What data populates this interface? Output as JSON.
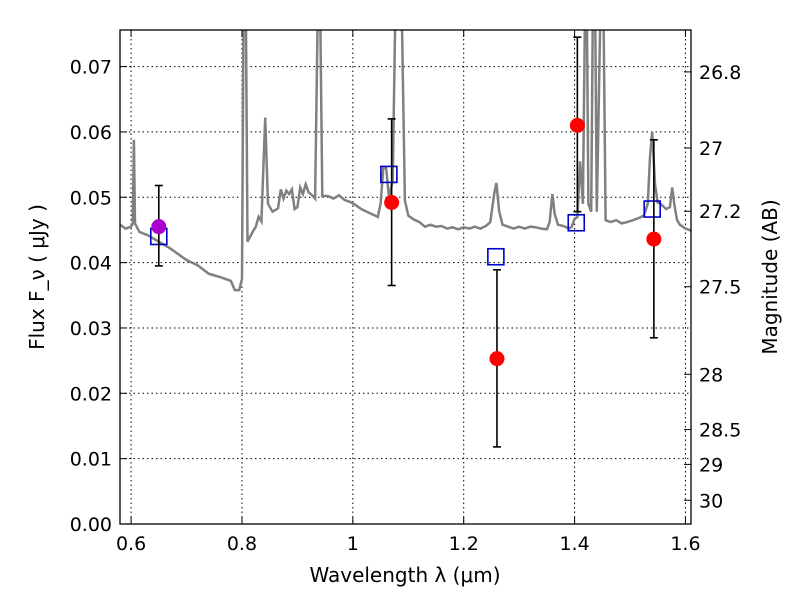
{
  "chart_data": {
    "type": "scatter",
    "xlabel": "Wavelength  λ (μm)",
    "ylabel": "Flux  F_ν  ( μJy )",
    "y2label": "Magnitude (AB)",
    "xlim": [
      0.58,
      1.61
    ],
    "ylim": [
      0.0,
      0.0756
    ],
    "grid": true,
    "x_ticks": [
      {
        "value": 0.6,
        "label": "0.6"
      },
      {
        "value": 0.8,
        "label": "0.8"
      },
      {
        "value": 1.0,
        "label": "1"
      },
      {
        "value": 1.2,
        "label": "1.2"
      },
      {
        "value": 1.4,
        "label": "1.4"
      },
      {
        "value": 1.6,
        "label": "1.6"
      }
    ],
    "y_ticks": [
      {
        "value": 0.0,
        "label": "0.00"
      },
      {
        "value": 0.01,
        "label": "0.01"
      },
      {
        "value": 0.02,
        "label": "0.02"
      },
      {
        "value": 0.03,
        "label": "0.03"
      },
      {
        "value": 0.04,
        "label": "0.04"
      },
      {
        "value": 0.05,
        "label": "0.05"
      },
      {
        "value": 0.06,
        "label": "0.06"
      },
      {
        "value": 0.07,
        "label": "0.07"
      }
    ],
    "y2_ticks": [
      {
        "value": 26.8,
        "label": "26.8"
      },
      {
        "value": 27.0,
        "label": "27"
      },
      {
        "value": 27.2,
        "label": "27.2"
      },
      {
        "value": 27.5,
        "label": "27.5"
      },
      {
        "value": 28.0,
        "label": "28"
      },
      {
        "value": 28.5,
        "label": "28.5"
      },
      {
        "value": 29.0,
        "label": "29"
      },
      {
        "value": 30.0,
        "label": "30"
      }
    ],
    "observed": [
      {
        "x": 0.65,
        "y": 0.0455,
        "err_low": 0.0395,
        "err_high": 0.0518,
        "color": "#aa00cc"
      },
      {
        "x": 1.07,
        "y": 0.0492,
        "err_low": 0.0365,
        "err_high": 0.062,
        "color": "#ff0000"
      },
      {
        "x": 1.26,
        "y": 0.0253,
        "err_low": 0.0118,
        "err_high": 0.0389,
        "color": "#ff0000"
      },
      {
        "x": 1.405,
        "y": 0.061,
        "err_low": 0.0478,
        "err_high": 0.0745,
        "color": "#ff0000"
      },
      {
        "x": 1.543,
        "y": 0.0436,
        "err_low": 0.0285,
        "err_high": 0.0588,
        "color": "#ff0000"
      }
    ],
    "model_bands": [
      {
        "x": 0.65,
        "y": 0.044
      },
      {
        "x": 1.065,
        "y": 0.0535
      },
      {
        "x": 1.258,
        "y": 0.0409
      },
      {
        "x": 1.403,
        "y": 0.0461
      },
      {
        "x": 1.54,
        "y": 0.0482
      }
    ],
    "model_spectrum": [
      [
        0.58,
        0.0458
      ],
      [
        0.59,
        0.0452
      ],
      [
        0.6,
        0.0455
      ],
      [
        0.603,
        0.046
      ],
      [
        0.605,
        0.0588
      ],
      [
        0.607,
        0.046
      ],
      [
        0.615,
        0.0447
      ],
      [
        0.63,
        0.0442
      ],
      [
        0.65,
        0.0432
      ],
      [
        0.67,
        0.0422
      ],
      [
        0.69,
        0.041
      ],
      [
        0.7,
        0.0404
      ],
      [
        0.72,
        0.0396
      ],
      [
        0.74,
        0.0383
      ],
      [
        0.76,
        0.0378
      ],
      [
        0.78,
        0.0372
      ],
      [
        0.787,
        0.0358
      ],
      [
        0.795,
        0.0358
      ],
      [
        0.8,
        0.0375
      ],
      [
        0.803,
        0.08
      ],
      [
        0.807,
        0.08
      ],
      [
        0.81,
        0.0432
      ],
      [
        0.82,
        0.0448
      ],
      [
        0.825,
        0.0455
      ],
      [
        0.83,
        0.047
      ],
      [
        0.835,
        0.0463
      ],
      [
        0.842,
        0.0622
      ],
      [
        0.847,
        0.049
      ],
      [
        0.855,
        0.0478
      ],
      [
        0.865,
        0.0483
      ],
      [
        0.87,
        0.0512
      ],
      [
        0.875,
        0.0498
      ],
      [
        0.88,
        0.051
      ],
      [
        0.885,
        0.0505
      ],
      [
        0.89,
        0.0512
      ],
      [
        0.895,
        0.0482
      ],
      [
        0.9,
        0.0485
      ],
      [
        0.905,
        0.0515
      ],
      [
        0.91,
        0.0505
      ],
      [
        0.915,
        0.052
      ],
      [
        0.92,
        0.0508
      ],
      [
        0.928,
        0.0502
      ],
      [
        0.932,
        0.0498
      ],
      [
        0.937,
        0.08
      ],
      [
        0.941,
        0.08
      ],
      [
        0.945,
        0.0502
      ],
      [
        0.955,
        0.0502
      ],
      [
        0.965,
        0.0498
      ],
      [
        0.975,
        0.0503
      ],
      [
        0.985,
        0.0496
      ],
      [
        0.995,
        0.0493
      ],
      [
        1.005,
        0.0488
      ],
      [
        1.015,
        0.0482
      ],
      [
        1.025,
        0.0478
      ],
      [
        1.035,
        0.0474
      ],
      [
        1.045,
        0.047
      ],
      [
        1.05,
        0.049
      ],
      [
        1.055,
        0.0545
      ],
      [
        1.06,
        0.0545
      ],
      [
        1.065,
        0.05
      ],
      [
        1.072,
        0.0525
      ],
      [
        1.077,
        0.08
      ],
      [
        1.088,
        0.08
      ],
      [
        1.094,
        0.0495
      ],
      [
        1.1,
        0.0472
      ],
      [
        1.11,
        0.0466
      ],
      [
        1.12,
        0.0462
      ],
      [
        1.13,
        0.0455
      ],
      [
        1.14,
        0.0458
      ],
      [
        1.15,
        0.0455
      ],
      [
        1.16,
        0.0456
      ],
      [
        1.17,
        0.0452
      ],
      [
        1.18,
        0.0454
      ],
      [
        1.19,
        0.0451
      ],
      [
        1.2,
        0.0454
      ],
      [
        1.21,
        0.0452
      ],
      [
        1.22,
        0.0455
      ],
      [
        1.23,
        0.0452
      ],
      [
        1.24,
        0.0456
      ],
      [
        1.248,
        0.0462
      ],
      [
        1.255,
        0.0505
      ],
      [
        1.259,
        0.0522
      ],
      [
        1.264,
        0.0478
      ],
      [
        1.27,
        0.0458
      ],
      [
        1.28,
        0.0455
      ],
      [
        1.29,
        0.0452
      ],
      [
        1.3,
        0.0455
      ],
      [
        1.31,
        0.0452
      ],
      [
        1.32,
        0.0455
      ],
      [
        1.33,
        0.0454
      ],
      [
        1.34,
        0.0452
      ],
      [
        1.35,
        0.0451
      ],
      [
        1.355,
        0.0462
      ],
      [
        1.36,
        0.0505
      ],
      [
        1.364,
        0.0475
      ],
      [
        1.37,
        0.0458
      ],
      [
        1.38,
        0.0456
      ],
      [
        1.39,
        0.0452
      ],
      [
        1.395,
        0.0455
      ],
      [
        1.4,
        0.0467
      ],
      [
        1.405,
        0.047
      ],
      [
        1.41,
        0.0555
      ],
      [
        1.415,
        0.049
      ],
      [
        1.419,
        0.08
      ],
      [
        1.422,
        0.08
      ],
      [
        1.425,
        0.049
      ],
      [
        1.43,
        0.0478
      ],
      [
        1.433,
        0.08
      ],
      [
        1.437,
        0.08
      ],
      [
        1.44,
        0.0478
      ],
      [
        1.447,
        0.08
      ],
      [
        1.452,
        0.08
      ],
      [
        1.456,
        0.0465
      ],
      [
        1.465,
        0.0462
      ],
      [
        1.475,
        0.0465
      ],
      [
        1.485,
        0.046
      ],
      [
        1.495,
        0.0462
      ],
      [
        1.505,
        0.0465
      ],
      [
        1.515,
        0.0468
      ],
      [
        1.525,
        0.0472
      ],
      [
        1.532,
        0.049
      ],
      [
        1.536,
        0.0562
      ],
      [
        1.54,
        0.06
      ],
      [
        1.545,
        0.052
      ],
      [
        1.55,
        0.0492
      ],
      [
        1.555,
        0.049
      ],
      [
        1.565,
        0.0482
      ],
      [
        1.572,
        0.0485
      ],
      [
        1.576,
        0.0515
      ],
      [
        1.58,
        0.0488
      ],
      [
        1.585,
        0.0465
      ],
      [
        1.59,
        0.0458
      ],
      [
        1.6,
        0.0452
      ],
      [
        1.61,
        0.0449
      ]
    ]
  }
}
